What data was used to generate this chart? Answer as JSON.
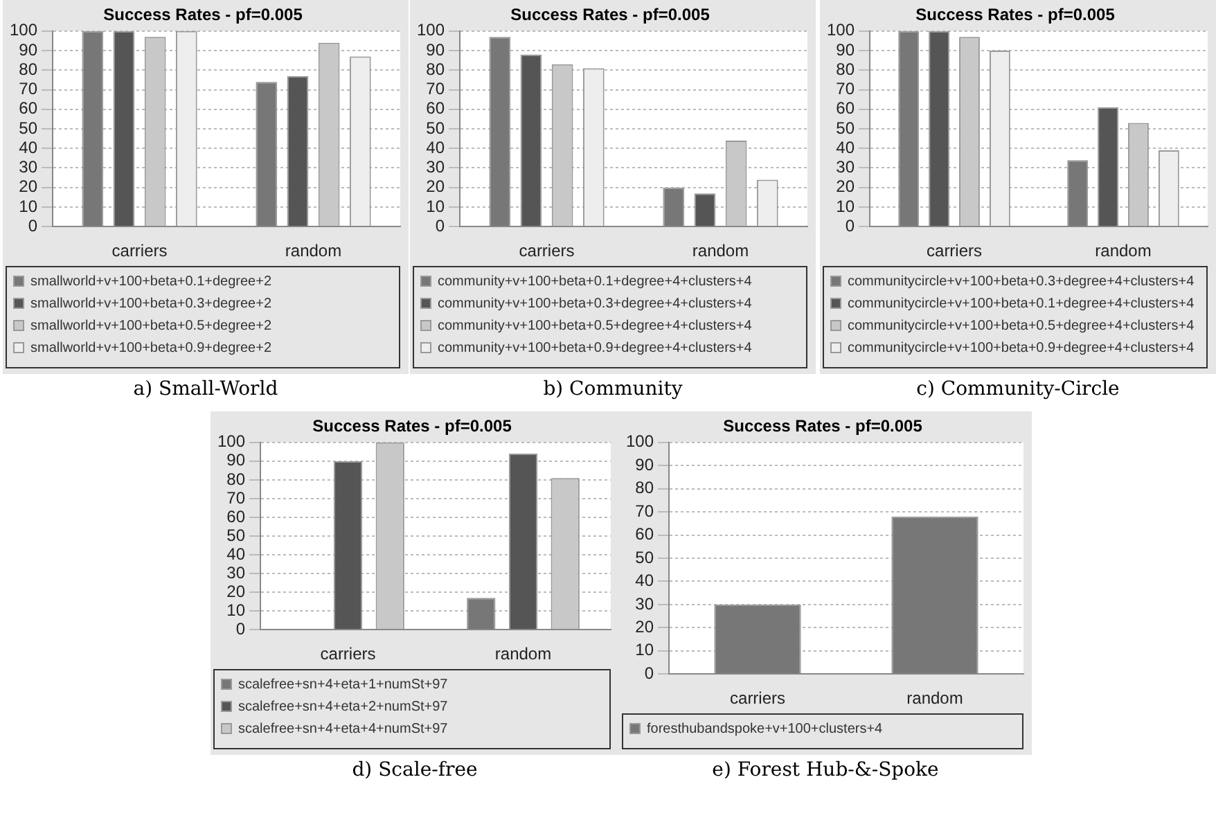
{
  "chart_data": [
    {
      "type": "bar",
      "title": "Success Rates - pf=0.005",
      "categories": [
        "carriers",
        "random"
      ],
      "ylim": [
        0,
        100
      ],
      "yticks": [
        0,
        10,
        20,
        30,
        40,
        50,
        60,
        70,
        80,
        90,
        100
      ],
      "grid": "y",
      "legend": "bottom",
      "annotations": [
        "a) Small-World"
      ],
      "series": [
        {
          "name": "smallworld+v+100+beta+0.1+degree+2",
          "color": "#777777",
          "values": [
            100,
            74
          ]
        },
        {
          "name": "smallworld+v+100+beta+0.3+degree+2",
          "color": "#555555",
          "values": [
            100,
            77
          ]
        },
        {
          "name": "smallworld+v+100+beta+0.5+degree+2",
          "color": "#c8c8c8",
          "values": [
            97,
            94
          ]
        },
        {
          "name": "smallworld+v+100+beta+0.9+degree+2",
          "color": "#eeeeee",
          "values": [
            100,
            87
          ]
        }
      ]
    },
    {
      "type": "bar",
      "title": "Success Rates - pf=0.005",
      "categories": [
        "carriers",
        "random"
      ],
      "ylim": [
        0,
        100
      ],
      "yticks": [
        0,
        10,
        20,
        30,
        40,
        50,
        60,
        70,
        80,
        90,
        100
      ],
      "grid": "y",
      "legend": "bottom",
      "annotations": [
        "b) Community"
      ],
      "series": [
        {
          "name": "community+v+100+beta+0.1+degree+4+clusters+4",
          "color": "#777777",
          "values": [
            97,
            20
          ]
        },
        {
          "name": "community+v+100+beta+0.3+degree+4+clusters+4",
          "color": "#555555",
          "values": [
            88,
            17
          ]
        },
        {
          "name": "community+v+100+beta+0.5+degree+4+clusters+4",
          "color": "#c8c8c8",
          "values": [
            83,
            44
          ]
        },
        {
          "name": "community+v+100+beta+0.9+degree+4+clusters+4",
          "color": "#eeeeee",
          "values": [
            81,
            24
          ]
        }
      ]
    },
    {
      "type": "bar",
      "title": "Success Rates - pf=0.005",
      "categories": [
        "carriers",
        "random"
      ],
      "ylim": [
        0,
        100
      ],
      "yticks": [
        0,
        10,
        20,
        30,
        40,
        50,
        60,
        70,
        80,
        90,
        100
      ],
      "grid": "y",
      "legend": "bottom",
      "annotations": [
        "c) Community-Circle"
      ],
      "series": [
        {
          "name": "communitycircle+v+100+beta+0.3+degree+4+clusters+4",
          "color": "#777777",
          "values": [
            100,
            34
          ]
        },
        {
          "name": "communitycircle+v+100+beta+0.1+degree+4+clusters+4",
          "color": "#555555",
          "values": [
            100,
            61
          ]
        },
        {
          "name": "communitycircle+v+100+beta+0.5+degree+4+clusters+4",
          "color": "#c8c8c8",
          "values": [
            97,
            53
          ]
        },
        {
          "name": "communitycircle+v+100+beta+0.9+degree+4+clusters+4",
          "color": "#eeeeee",
          "values": [
            90,
            39
          ]
        }
      ]
    },
    {
      "type": "bar",
      "title": "Success Rates - pf=0.005",
      "categories": [
        "carriers",
        "random"
      ],
      "ylim": [
        0,
        100
      ],
      "yticks": [
        0,
        10,
        20,
        30,
        40,
        50,
        60,
        70,
        80,
        90,
        100
      ],
      "grid": "y",
      "legend": "bottom",
      "annotations": [
        "d) Scale-free"
      ],
      "series": [
        {
          "name": "scalefree+sn+4+eta+1+numSt+97",
          "color": "#777777",
          "values": [
            0,
            17
          ]
        },
        {
          "name": "scalefree+sn+4+eta+2+numSt+97",
          "color": "#555555",
          "values": [
            90,
            94
          ]
        },
        {
          "name": "scalefree+sn+4+eta+4+numSt+97",
          "color": "#c8c8c8",
          "values": [
            100,
            81
          ]
        }
      ]
    },
    {
      "type": "bar",
      "title": "Success Rates - pf=0.005",
      "categories": [
        "carriers",
        "random"
      ],
      "ylim": [
        0,
        100
      ],
      "yticks": [
        0,
        10,
        20,
        30,
        40,
        50,
        60,
        70,
        80,
        90,
        100
      ],
      "grid": "y",
      "legend": "bottom",
      "annotations": [
        "e) Forest Hub-&-Spoke"
      ],
      "series": [
        {
          "name": "foresthubandspoke+v+100+clusters+4",
          "color": "#777777",
          "values": [
            30,
            68
          ]
        }
      ]
    }
  ]
}
